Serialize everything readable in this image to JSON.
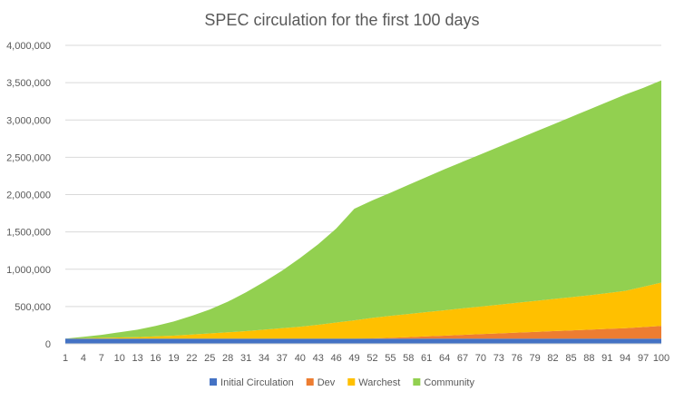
{
  "chart_data": {
    "type": "area",
    "stacked": true,
    "title": "SPEC circulation for the first 100 days",
    "xlabel": "",
    "ylabel": "",
    "ylim": [
      0,
      4000000
    ],
    "y_ticks": [
      0,
      500000,
      1000000,
      1500000,
      2000000,
      2500000,
      3000000,
      3500000,
      4000000
    ],
    "y_tick_labels": [
      "0",
      "500,000",
      "1,000,000",
      "1,500,000",
      "2,000,000",
      "2,500,000",
      "3,000,000",
      "3,500,000",
      "4,000,000"
    ],
    "x_tick_labels": [
      "1",
      "4",
      "7",
      "10",
      "13",
      "16",
      "19",
      "22",
      "25",
      "28",
      "31",
      "34",
      "37",
      "40",
      "43",
      "46",
      "49",
      "52",
      "55",
      "58",
      "61",
      "64",
      "67",
      "70",
      "73",
      "76",
      "79",
      "82",
      "85",
      "88",
      "91",
      "94",
      "97",
      "100"
    ],
    "x": [
      1,
      4,
      7,
      10,
      13,
      16,
      19,
      22,
      25,
      28,
      31,
      34,
      37,
      40,
      43,
      46,
      49,
      52,
      55,
      58,
      61,
      64,
      67,
      70,
      73,
      76,
      79,
      82,
      85,
      88,
      91,
      94,
      97,
      100
    ],
    "grid": true,
    "legend_position": "bottom",
    "series": [
      {
        "name": "Initial Circulation",
        "color": "#4472c4",
        "values": [
          70000,
          70000,
          70000,
          70000,
          70000,
          70000,
          70000,
          70000,
          70000,
          70000,
          70000,
          70000,
          70000,
          70000,
          70000,
          70000,
          70000,
          70000,
          70000,
          70000,
          70000,
          70000,
          70000,
          70000,
          70000,
          70000,
          70000,
          70000,
          70000,
          70000,
          70000,
          70000,
          70000,
          70000
        ]
      },
      {
        "name": "Dev",
        "color": "#ed7d31",
        "values": [
          0,
          0,
          0,
          0,
          0,
          0,
          0,
          0,
          0,
          0,
          0,
          0,
          0,
          0,
          0,
          0,
          0,
          3000,
          10000,
          20000,
          30000,
          40000,
          50000,
          60000,
          70000,
          80000,
          90000,
          100000,
          110000,
          120000,
          130000,
          140000,
          155000,
          170000
        ]
      },
      {
        "name": "Warchest",
        "color": "#ffc000",
        "values": [
          0,
          5000,
          10000,
          15000,
          20000,
          30000,
          40000,
          55000,
          70000,
          85000,
          100000,
          120000,
          140000,
          160000,
          185000,
          215000,
          245000,
          275000,
          295000,
          310000,
          325000,
          340000,
          355000,
          370000,
          385000,
          400000,
          415000,
          430000,
          445000,
          460000,
          480000,
          500000,
          540000,
          580000
        ]
      },
      {
        "name": "Community",
        "color": "#92d050",
        "values": [
          0,
          20000,
          40000,
          70000,
          100000,
          140000,
          190000,
          250000,
          320000,
          410000,
          520000,
          640000,
          770000,
          920000,
          1080000,
          1260000,
          1495000,
          1575000,
          1650000,
          1730000,
          1810000,
          1890000,
          1965000,
          2040000,
          2115000,
          2190000,
          2265000,
          2340000,
          2415000,
          2490000,
          2560000,
          2630000,
          2665000,
          2710000
        ]
      }
    ]
  }
}
